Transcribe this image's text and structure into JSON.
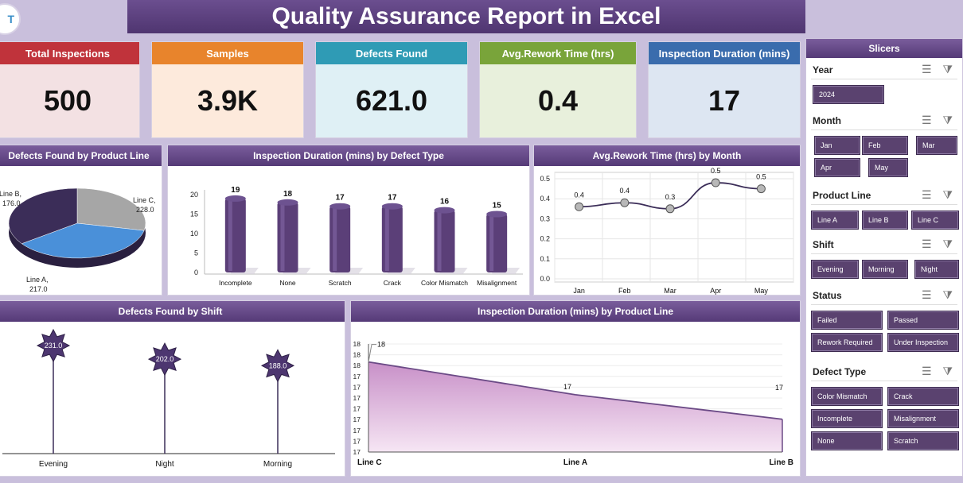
{
  "header": {
    "logo_text": "T",
    "title": "Quality Assurance Report in Excel"
  },
  "kpis": [
    {
      "label": "Total Inspections",
      "value": "500",
      "color": "#c0333b",
      "bg": "#f3e1e3"
    },
    {
      "label": "Samples",
      "value": "3.9K",
      "color": "#e8842c",
      "bg": "#fdeadc"
    },
    {
      "label": "Defects Found",
      "value": "621.0",
      "color": "#2f9bb5",
      "bg": "#dff0f5"
    },
    {
      "label": "Avg.Rework Time (hrs)",
      "value": "0.4",
      "color": "#79a43a",
      "bg": "#e8f0dc"
    },
    {
      "label": "Inspection Duration (mins)",
      "value": "17",
      "color": "#3a6cad",
      "bg": "#dde6f2"
    }
  ],
  "panels": {
    "pie_title": "Defects Found by Product Line",
    "bar_title": "Inspection Duration (mins) by Defect Type",
    "line_title": "Avg.Rework Time (hrs) by Month",
    "shift_title": "Defects Found by Shift",
    "area_title": "Inspection Duration (mins) by Product Line"
  },
  "chart_data": [
    {
      "type": "pie",
      "title": "Defects Found by Product Line",
      "categories": [
        "Line B",
        "Line C",
        "Line A"
      ],
      "values": [
        176.0,
        228.0,
        217.0
      ],
      "labels": [
        "176.0",
        "228.0",
        "217.0"
      ],
      "colors": [
        "#a6a6a6",
        "#4a90d9",
        "#3b2d58"
      ]
    },
    {
      "type": "bar",
      "title": "Inspection Duration (mins) by Defect Type",
      "categories": [
        "Incomplete",
        "None",
        "Scratch",
        "Crack",
        "Color Mismatch",
        "Misalignment"
      ],
      "values": [
        19,
        18,
        17,
        17,
        16,
        15
      ],
      "ylim": [
        0,
        20
      ],
      "yticks": [
        "0",
        "5",
        "10",
        "15",
        "20"
      ]
    },
    {
      "type": "line",
      "title": "Avg.Rework Time (hrs) by Month",
      "categories": [
        "Jan",
        "Feb",
        "Mar",
        "Apr",
        "May"
      ],
      "values": [
        0.36,
        0.38,
        0.35,
        0.48,
        0.45
      ],
      "labels": [
        "0.4",
        "0.4",
        "0.3",
        "0.5",
        "0.5"
      ],
      "ylim": [
        0,
        0.5
      ],
      "yticks": [
        "0.0",
        "0.1",
        "0.2",
        "0.3",
        "0.4",
        "0.5"
      ]
    },
    {
      "type": "bar",
      "title": "Defects Found by Shift",
      "categories": [
        "Evening",
        "Night",
        "Morning"
      ],
      "values": [
        231.0,
        202.0,
        188.0
      ],
      "labels": [
        "231.0",
        "202.0",
        "188.0"
      ]
    },
    {
      "type": "area",
      "title": "Inspection Duration (mins) by Product Line",
      "categories": [
        "Line C",
        "Line A",
        "Line B"
      ],
      "values": [
        17.6,
        17.2,
        16.9
      ],
      "labels": [
        "18",
        "17",
        "17"
      ],
      "yticks": [
        "17",
        "17",
        "17",
        "17",
        "17",
        "17",
        "17",
        "17",
        "18",
        "18",
        "18"
      ]
    }
  ],
  "slicers": {
    "title": "Slicers",
    "groups": [
      {
        "name": "Year",
        "items": [
          "2024"
        ]
      },
      {
        "name": "Month",
        "items": [
          "Jan",
          "Feb",
          "Mar",
          "Apr",
          "May"
        ]
      },
      {
        "name": "Product Line",
        "items": [
          "Line A",
          "Line B",
          "Line C"
        ]
      },
      {
        "name": "Shift",
        "items": [
          "Evening",
          "Morning",
          "Night"
        ]
      },
      {
        "name": "Status",
        "items": [
          "Failed",
          "Passed",
          "Rework Required",
          "Under Inspection"
        ]
      },
      {
        "name": "Defect Type",
        "items": [
          "Color Mismatch",
          "Crack",
          "Incomplete",
          "Misalignment",
          "None",
          "Scratch"
        ]
      }
    ],
    "icons": [
      "multi-select-icon",
      "clear-filter-icon"
    ]
  }
}
